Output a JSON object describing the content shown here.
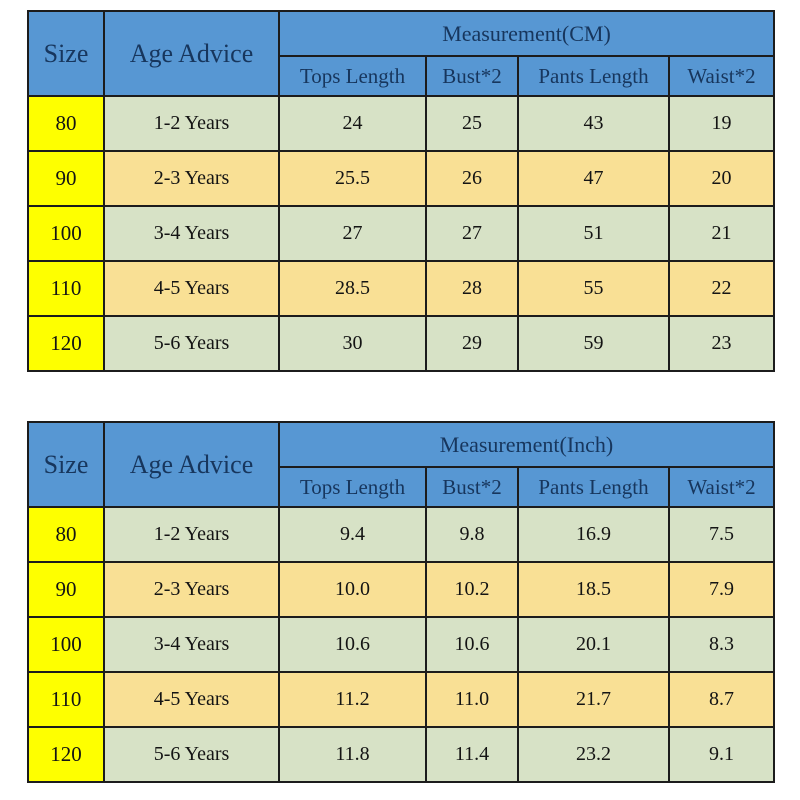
{
  "colors": {
    "header_bg": "#5797d3",
    "header_text": "#17365d",
    "size_column_bg": "#feff00",
    "row_green_bg": "#d7e2c6",
    "row_tan_bg": "#f9e095",
    "border": "#1c1c1c",
    "page_bg": "#ffffff"
  },
  "tables": [
    {
      "headers": {
        "size": "Size",
        "age": "Age Advice",
        "measurement": "Measurement(CM)",
        "sub": [
          "Tops Length",
          "Bust*2",
          "Pants Length",
          "Waist*2"
        ]
      },
      "rows": [
        {
          "size": "80",
          "age": "1-2 Years",
          "values": [
            "24",
            "25",
            "43",
            "19"
          ]
        },
        {
          "size": "90",
          "age": "2-3 Years",
          "values": [
            "25.5",
            "26",
            "47",
            "20"
          ]
        },
        {
          "size": "100",
          "age": "3-4 Years",
          "values": [
            "27",
            "27",
            "51",
            "21"
          ]
        },
        {
          "size": "110",
          "age": "4-5 Years",
          "values": [
            "28.5",
            "28",
            "55",
            "22"
          ]
        },
        {
          "size": "120",
          "age": "5-6 Years",
          "values": [
            "30",
            "29",
            "59",
            "23"
          ]
        }
      ]
    },
    {
      "headers": {
        "size": "Size",
        "age": "Age Advice",
        "measurement": "Measurement(Inch)",
        "sub": [
          "Tops Length",
          "Bust*2",
          "Pants Length",
          "Waist*2"
        ]
      },
      "rows": [
        {
          "size": "80",
          "age": "1-2 Years",
          "values": [
            "9.4",
            "9.8",
            "16.9",
            "7.5"
          ]
        },
        {
          "size": "90",
          "age": "2-3 Years",
          "values": [
            "10.0",
            "10.2",
            "18.5",
            "7.9"
          ]
        },
        {
          "size": "100",
          "age": "3-4 Years",
          "values": [
            "10.6",
            "10.6",
            "20.1",
            "8.3"
          ]
        },
        {
          "size": "110",
          "age": "4-5 Years",
          "values": [
            "11.2",
            "11.0",
            "21.7",
            "8.7"
          ]
        },
        {
          "size": "120",
          "age": "5-6 Years",
          "values": [
            "11.8",
            "11.4",
            "23.2",
            "9.1"
          ]
        }
      ]
    }
  ],
  "chart_data": [
    {
      "type": "table",
      "title": "Measurement(CM)",
      "columns": [
        "Size",
        "Age Advice",
        "Tops Length",
        "Bust*2",
        "Pants Length",
        "Waist*2"
      ],
      "rows": [
        [
          "80",
          "1-2 Years",
          24,
          25,
          43,
          19
        ],
        [
          "90",
          "2-3 Years",
          25.5,
          26,
          47,
          20
        ],
        [
          "100",
          "3-4 Years",
          27,
          27,
          51,
          21
        ],
        [
          "110",
          "4-5 Years",
          28.5,
          28,
          55,
          22
        ],
        [
          "120",
          "5-6 Years",
          30,
          29,
          59,
          23
        ]
      ]
    },
    {
      "type": "table",
      "title": "Measurement(Inch)",
      "columns": [
        "Size",
        "Age Advice",
        "Tops Length",
        "Bust*2",
        "Pants Length",
        "Waist*2"
      ],
      "rows": [
        [
          "80",
          "1-2 Years",
          9.4,
          9.8,
          16.9,
          7.5
        ],
        [
          "90",
          "2-3 Years",
          10.0,
          10.2,
          18.5,
          7.9
        ],
        [
          "100",
          "3-4 Years",
          10.6,
          10.6,
          20.1,
          8.3
        ],
        [
          "110",
          "4-5 Years",
          11.2,
          11.0,
          21.7,
          8.7
        ],
        [
          "120",
          "5-6 Years",
          11.8,
          11.4,
          23.2,
          9.1
        ]
      ]
    }
  ]
}
